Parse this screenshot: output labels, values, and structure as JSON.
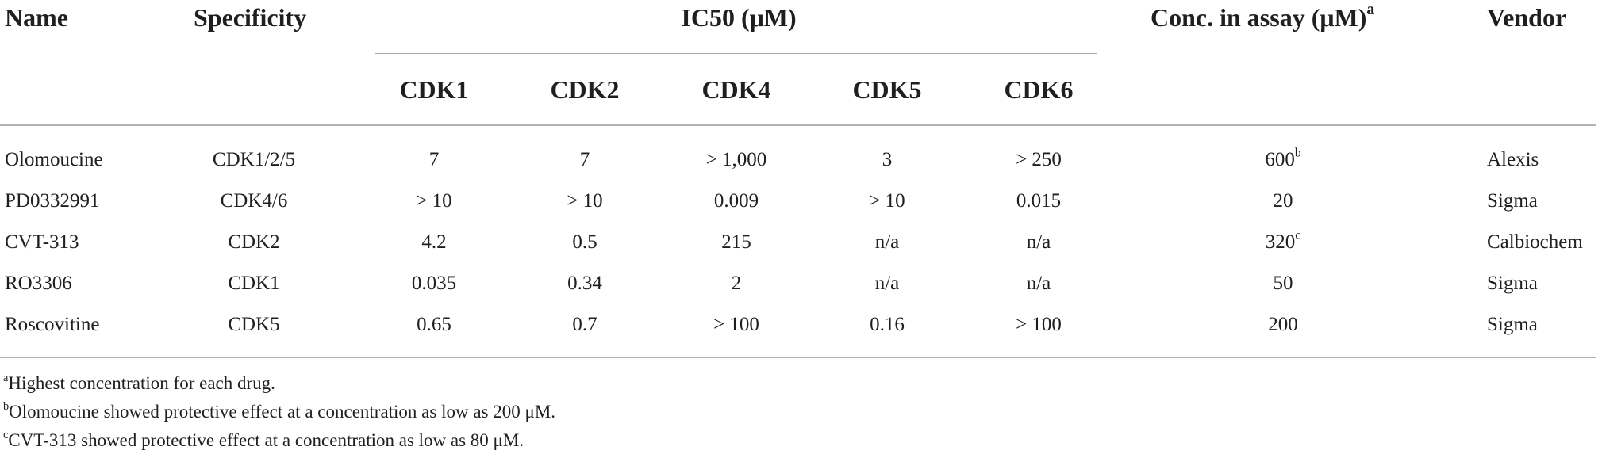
{
  "table": {
    "headers": {
      "name": "Name",
      "specificity": "Specificity",
      "ic50_group": "IC50 (μM)",
      "cdk1": "CDK1",
      "cdk2": "CDK2",
      "cdk4": "CDK4",
      "cdk5": "CDK5",
      "cdk6": "CDK6",
      "conc": "Conc. in assay (μM)",
      "conc_mark": "a",
      "vendor": "Vendor"
    },
    "rows": [
      {
        "name": "Olomoucine",
        "specificity": "CDK1/2/5",
        "cdk1": "7",
        "cdk2": "7",
        "cdk4": "> 1,000",
        "cdk5": "3",
        "cdk6": "> 250",
        "conc": "600",
        "conc_mark": "b",
        "vendor": "Alexis"
      },
      {
        "name": "PD0332991",
        "specificity": "CDK4/6",
        "cdk1": "> 10",
        "cdk2": "> 10",
        "cdk4": "0.009",
        "cdk5": "> 10",
        "cdk6": "0.015",
        "conc": "20",
        "conc_mark": "",
        "vendor": "Sigma"
      },
      {
        "name": "CVT-313",
        "specificity": "CDK2",
        "cdk1": "4.2",
        "cdk2": "0.5",
        "cdk4": "215",
        "cdk5": "n/a",
        "cdk6": "n/a",
        "conc": "320",
        "conc_mark": "c",
        "vendor": "Calbiochem"
      },
      {
        "name": "RO3306",
        "specificity": "CDK1",
        "cdk1": "0.035",
        "cdk2": "0.34",
        "cdk4": "2",
        "cdk5": "n/a",
        "cdk6": "n/a",
        "conc": "50",
        "conc_mark": "",
        "vendor": "Sigma"
      },
      {
        "name": "Roscovitine",
        "specificity": "CDK5",
        "cdk1": "0.65",
        "cdk2": "0.7",
        "cdk4": "> 100",
        "cdk5": "0.16",
        "cdk6": "> 100",
        "conc": "200",
        "conc_mark": "",
        "vendor": "Sigma"
      }
    ],
    "footnotes": [
      {
        "mark": "a",
        "text": "Highest concentration for each drug."
      },
      {
        "mark": "b",
        "text": "Olomoucine showed protective effect at a concentration as low as 200 μM."
      },
      {
        "mark": "c",
        "text": "CVT-313 showed protective effect at a concentration as low as 80 μM."
      }
    ]
  }
}
